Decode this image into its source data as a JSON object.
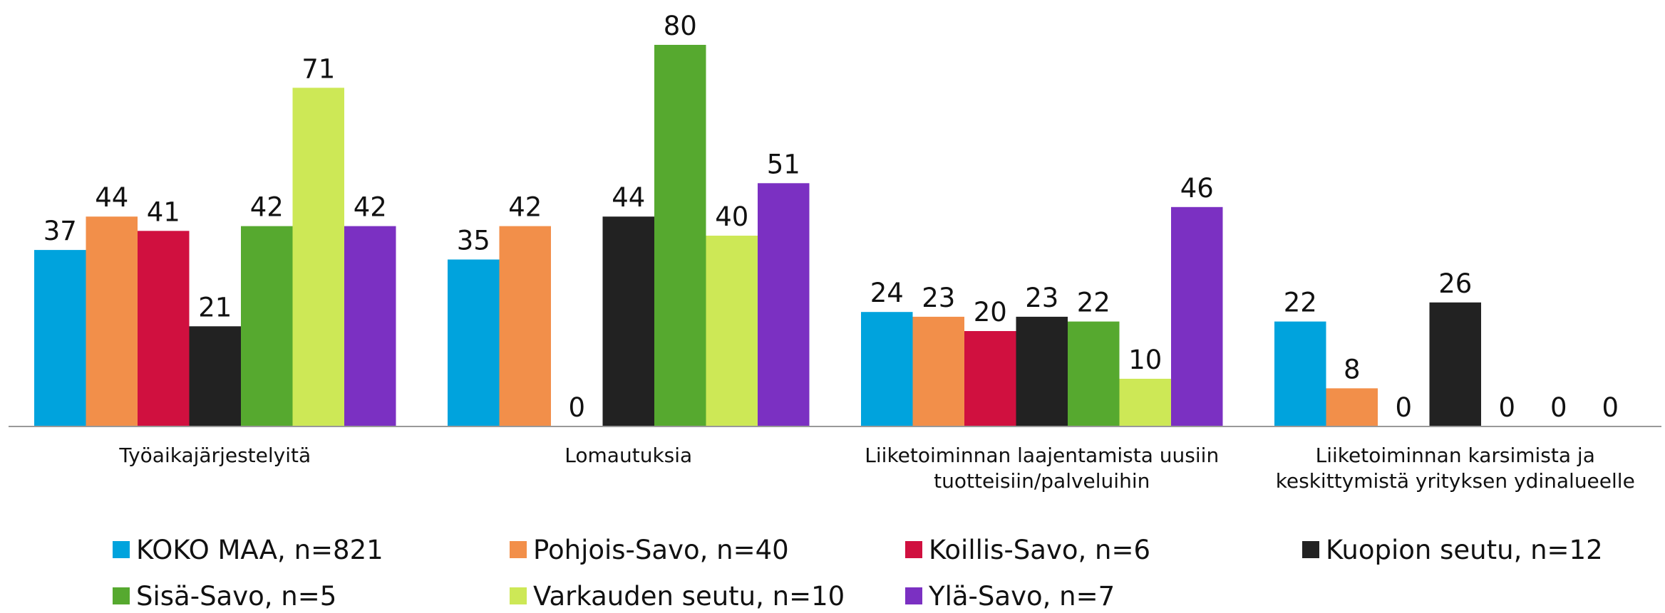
{
  "chart_data": {
    "type": "bar",
    "categories": [
      "Työaikajärjestelyitä",
      "Lomautuksia",
      "Liiketoiminnan laajentamista uusiin tuotteisiin/palveluihin",
      "Liiketoiminnan karsimista ja keskittymistä yrityksen ydinalueelle"
    ],
    "series": [
      {
        "name": "KOKO MAA, n=821",
        "color": "#00a3dd",
        "values": [
          37,
          35,
          24,
          22
        ]
      },
      {
        "name": "Pohjois-Savo, n=40",
        "color": "#f28f4a",
        "values": [
          44,
          42,
          23,
          8
        ]
      },
      {
        "name": "Koillis-Savo, n=6",
        "color": "#d0103f",
        "values": [
          41,
          0,
          20,
          0
        ]
      },
      {
        "name": "Kuopion seutu, n=12",
        "color": "#222222",
        "values": [
          21,
          44,
          23,
          26
        ]
      },
      {
        "name": "Sisä-Savo, n=5",
        "color": "#56a92f",
        "values": [
          42,
          80,
          22,
          0
        ]
      },
      {
        "name": "Varkauden seutu, n=10",
        "color": "#cde856",
        "values": [
          71,
          40,
          10,
          0
        ]
      },
      {
        "name": "Ylä-Savo, n=7",
        "color": "#7b30c2",
        "values": [
          42,
          51,
          46,
          0
        ]
      }
    ],
    "ylim": [
      0,
      80
    ]
  }
}
